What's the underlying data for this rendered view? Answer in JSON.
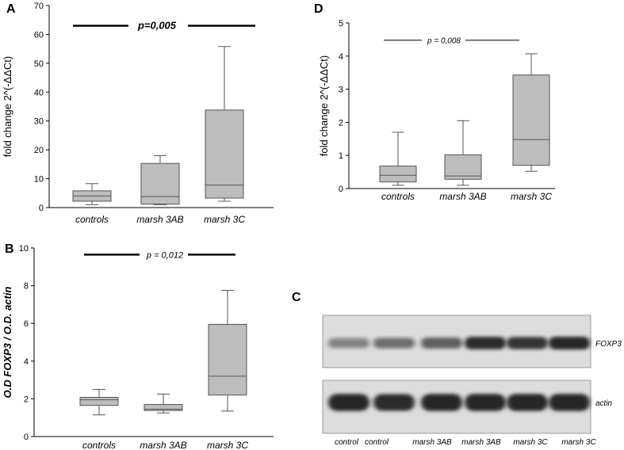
{
  "chart_data": [
    {
      "id": "A",
      "panel_label": "A",
      "type": "box",
      "ylabel": "fold change 2^(-ΔΔCt)",
      "ylim": [
        0,
        70
      ],
      "yticks": [
        0,
        10,
        20,
        30,
        40,
        50,
        60,
        70
      ],
      "categories": [
        "controls",
        "marsh 3AB",
        "marsh 3C"
      ],
      "boxes": [
        {
          "min": 1.0,
          "q1": 2.2,
          "median": 4.0,
          "q3": 5.8,
          "max": 8.3
        },
        {
          "min": 1.0,
          "q1": 1.2,
          "median": 3.8,
          "q3": 15.3,
          "max": 18.0
        },
        {
          "min": 2.2,
          "q1": 3.3,
          "median": 7.8,
          "q3": 33.8,
          "max": 55.8
        }
      ],
      "significance": {
        "text": "p=0,005",
        "level": 63
      }
    },
    {
      "id": "D",
      "panel_label": "D",
      "type": "box",
      "ylabel": "fold change 2^(-ΔΔCt)",
      "ylim": [
        0,
        5
      ],
      "yticks": [
        0,
        1,
        2,
        3,
        4,
        5
      ],
      "categories": [
        "controls",
        "marsh 3AB",
        "marsh 3C"
      ],
      "boxes": [
        {
          "min": 0.1,
          "q1": 0.2,
          "median": 0.4,
          "q3": 0.68,
          "max": 1.7
        },
        {
          "min": 0.1,
          "q1": 0.28,
          "median": 0.38,
          "q3": 1.02,
          "max": 2.05
        },
        {
          "min": 0.52,
          "q1": 0.7,
          "median": 1.48,
          "q3": 3.43,
          "max": 4.07
        }
      ],
      "significance": {
        "text": "p = 0,008",
        "level": 4.48
      }
    },
    {
      "id": "B",
      "panel_label": "B",
      "type": "box",
      "ylabel": "O.D FOXP3 / O.D. actin",
      "ylim": [
        0,
        10
      ],
      "yticks": [
        0,
        2,
        4,
        6,
        8,
        10
      ],
      "categories": [
        "controls",
        "marsh 3AB",
        "marsh 3C"
      ],
      "boxes": [
        {
          "min": 1.15,
          "q1": 1.65,
          "median": 1.95,
          "q3": 2.08,
          "max": 2.5
        },
        {
          "min": 1.25,
          "q1": 1.38,
          "median": 1.45,
          "q3": 1.7,
          "max": 2.25
        },
        {
          "min": 1.35,
          "q1": 2.2,
          "median": 3.2,
          "q3": 5.95,
          "max": 7.75
        }
      ],
      "significance": {
        "text": "p = 0,012",
        "level": 9.65
      }
    }
  ],
  "blot": {
    "panel_label": "C",
    "rows": [
      "FOXP3",
      "actin"
    ],
    "lanes": [
      "control",
      "control",
      "marsh 3AB",
      "marsh 3AB",
      "marsh 3C",
      "marsh 3C"
    ],
    "band_intensity": {
      "FOXP3": [
        0.45,
        0.55,
        0.65,
        0.9,
        0.85,
        0.95
      ],
      "actin": [
        0.95,
        0.9,
        0.95,
        0.95,
        0.95,
        0.95
      ]
    }
  }
}
